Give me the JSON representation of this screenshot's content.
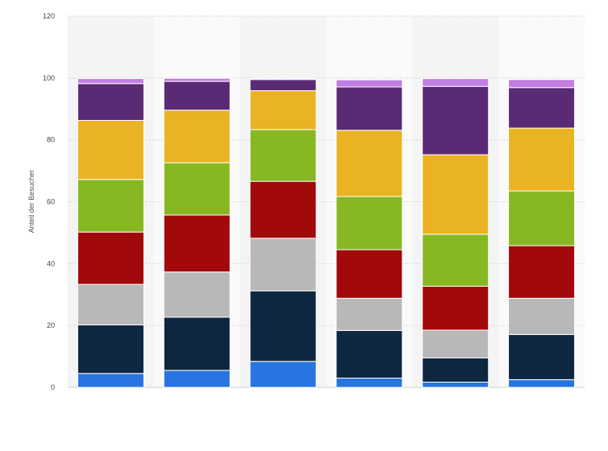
{
  "chart_data": {
    "type": "bar",
    "stacked": true,
    "ylabel": "Anteil der Besucher",
    "ylim": [
      0,
      120
    ],
    "yticks": [
      0,
      20,
      40,
      60,
      80,
      100,
      120
    ],
    "grid": true,
    "categories": [
      "",
      "",
      "",
      "",
      "",
      ""
    ],
    "series": [
      {
        "color": "#2874e0",
        "values": [
          4.5,
          5.5,
          8.4,
          3.0,
          1.7,
          2.5
        ]
      },
      {
        "color": "#0e2740",
        "values": [
          15.7,
          17.2,
          22.8,
          15.4,
          7.8,
          14.6
        ]
      },
      {
        "color": "#b8b8b8",
        "values": [
          13.1,
          14.6,
          17.0,
          10.4,
          9.0,
          11.7
        ]
      },
      {
        "color": "#a2090a",
        "values": [
          16.9,
          18.4,
          18.4,
          15.7,
          14.2,
          17.0
        ]
      },
      {
        "color": "#87b823",
        "values": [
          17.0,
          16.9,
          16.7,
          17.2,
          16.8,
          17.7
        ]
      },
      {
        "color": "#eab323",
        "values": [
          19.1,
          17.0,
          12.6,
          21.4,
          25.7,
          20.3
        ]
      },
      {
        "color": "#5b2a75",
        "values": [
          11.9,
          9.3,
          3.6,
          14.0,
          22.1,
          13.1
        ]
      },
      {
        "color": "#c27ee2",
        "values": [
          1.6,
          1.0,
          0.3,
          2.3,
          2.5,
          2.6
        ]
      }
    ]
  }
}
